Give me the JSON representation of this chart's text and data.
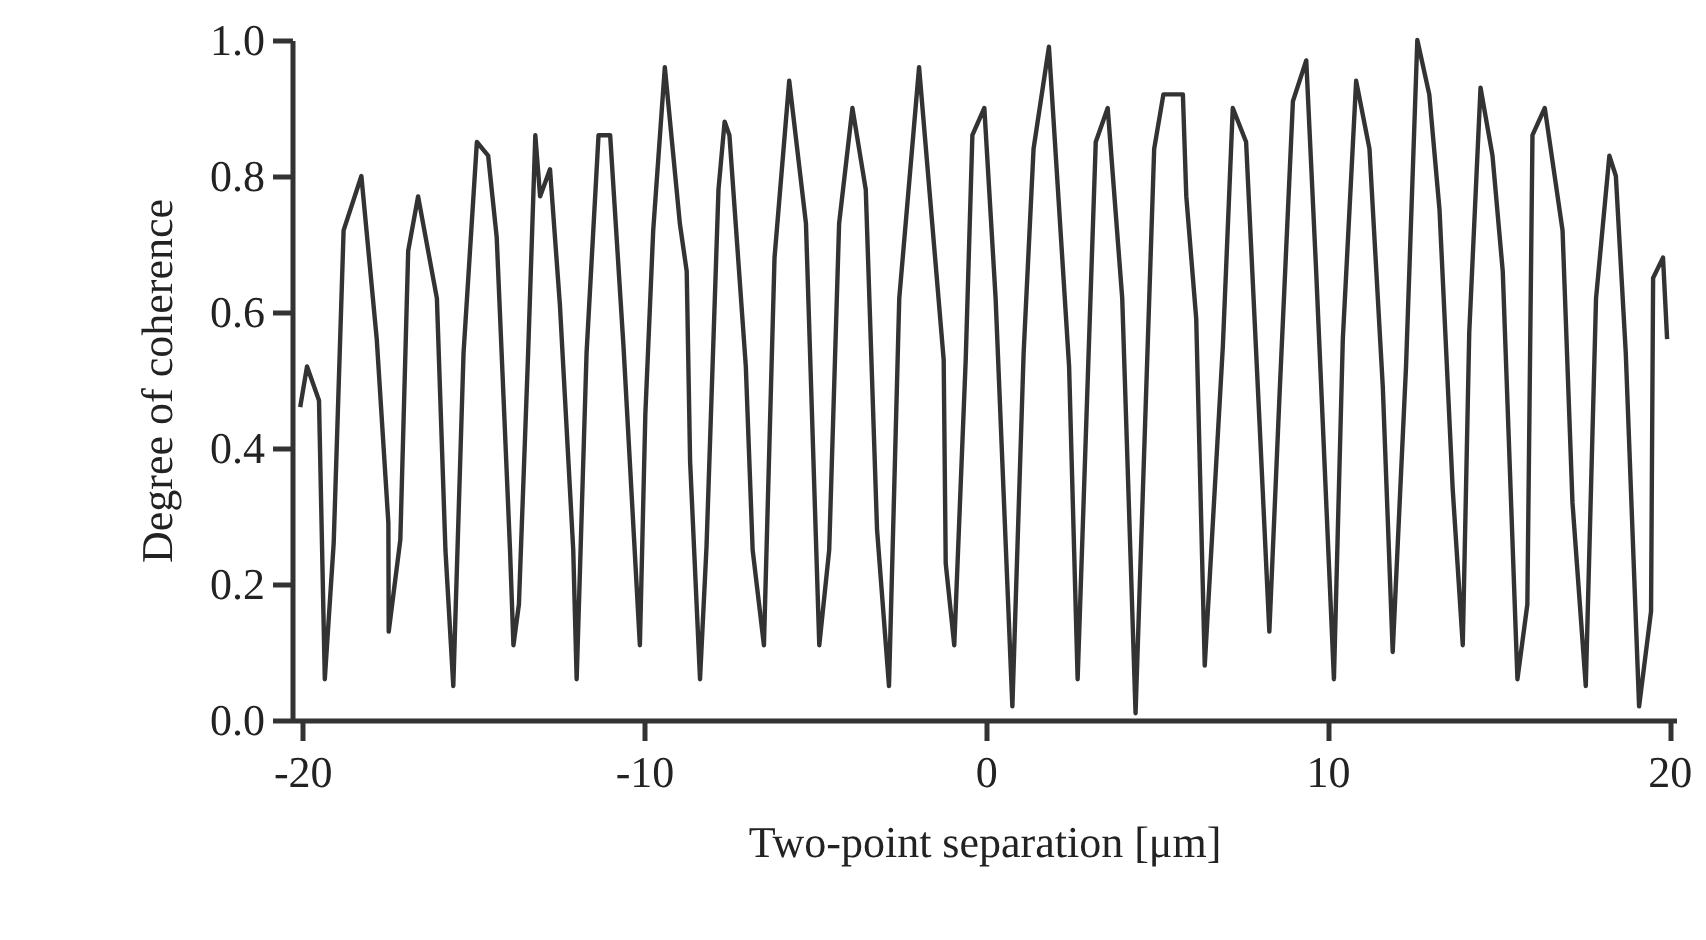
{
  "chart_data": {
    "type": "line",
    "xlabel": "Two-point separation [μm]",
    "ylabel": "Degree of coherence",
    "xlim": [
      -20.3,
      20.2
    ],
    "ylim": [
      0,
      1.0
    ],
    "xticks": [
      -20,
      -10,
      0,
      10,
      20
    ],
    "yticks": [
      {
        "value": 0,
        "label": "0.0"
      },
      {
        "value": 0.2,
        "label": "0.2"
      },
      {
        "value": 0.4,
        "label": "0.4"
      },
      {
        "value": 0.6,
        "label": "0.6"
      },
      {
        "value": 0.8,
        "label": "0.8"
      },
      {
        "value": 1.0,
        "label": "1.0"
      }
    ],
    "grid": false,
    "marker": "none",
    "line_style": "solid",
    "series": [
      {
        "color": "#333333",
        "x": [
          -20.06,
          -19.86,
          -19.51,
          -19.34,
          -19.08,
          -18.79,
          -18.27,
          -17.82,
          -17.48,
          -17.47,
          -17.13,
          -16.9,
          -16.61,
          -16.06,
          -15.81,
          -15.58,
          -15.28,
          -14.89,
          -14.56,
          -14.31,
          -13.92,
          -13.82,
          -13.66,
          -13.39,
          -13.18,
          -13.04,
          -12.75,
          -12.46,
          -12.07,
          -11.97,
          -11.68,
          -11.33,
          -10.99,
          -10.6,
          -10.12,
          -9.96,
          -9.73,
          -9.39,
          -8.95,
          -8.75,
          -8.65,
          -8.36,
          -8.17,
          -7.82,
          -7.64,
          -7.5,
          -7.02,
          -6.82,
          -6.49,
          -6.18,
          -5.75,
          -5.26,
          -4.87,
          -4.58,
          -4.29,
          -3.9,
          -3.51,
          -3.18,
          -2.83,
          -2.53,
          -1.95,
          -1.23,
          -1.17,
          -0.92,
          -0.585,
          -0.39,
          -0.04,
          0.29,
          0.78,
          1.11,
          1.4,
          1.85,
          2.44,
          2.69,
          3.22,
          3.57,
          3.995,
          4.385,
          4.93,
          5.2,
          5.77,
          5.87,
          6.16,
          6.41,
          6.94,
          7.23,
          7.62,
          8.01,
          8.3,
          8.6,
          8.99,
          9.38,
          9.67,
          10.19,
          10.45,
          10.84,
          11.23,
          11.62,
          11.91,
          12.3,
          12.63,
          12.98,
          13.28,
          13.665,
          13.96,
          14.15,
          14.48,
          14.83,
          15.13,
          15.56,
          15.85,
          16.0,
          16.36,
          16.88,
          17.17,
          17.56,
          17.86,
          18.25,
          18.44,
          18.73,
          19.12,
          19.47,
          19.53,
          19.82,
          19.94
        ],
        "values": [
          0.46,
          0.52,
          0.47,
          0.06,
          0.26,
          0.72,
          0.8,
          0.56,
          0.29,
          0.13,
          0.265,
          0.69,
          0.77,
          0.62,
          0.25,
          0.05,
          0.54,
          0.85,
          0.83,
          0.71,
          0.25,
          0.11,
          0.17,
          0.54,
          0.86,
          0.77,
          0.81,
          0.61,
          0.25,
          0.06,
          0.54,
          0.86,
          0.86,
          0.55,
          0.11,
          0.45,
          0.72,
          0.96,
          0.73,
          0.66,
          0.38,
          0.06,
          0.255,
          0.78,
          0.88,
          0.86,
          0.52,
          0.25,
          0.11,
          0.68,
          0.94,
          0.73,
          0.11,
          0.25,
          0.73,
          0.9,
          0.78,
          0.28,
          0.05,
          0.62,
          0.96,
          0.53,
          0.23,
          0.11,
          0.53,
          0.86,
          0.9,
          0.62,
          0.02,
          0.54,
          0.84,
          0.99,
          0.52,
          0.06,
          0.85,
          0.9,
          0.62,
          0.01,
          0.84,
          0.92,
          0.92,
          0.77,
          0.59,
          0.08,
          0.55,
          0.9,
          0.85,
          0.44,
          0.13,
          0.48,
          0.91,
          0.97,
          0.66,
          0.06,
          0.56,
          0.94,
          0.84,
          0.49,
          0.1,
          0.52,
          1.0,
          0.92,
          0.75,
          0.34,
          0.11,
          0.57,
          0.93,
          0.83,
          0.66,
          0.06,
          0.17,
          0.86,
          0.9,
          0.72,
          0.32,
          0.05,
          0.62,
          0.83,
          0.8,
          0.54,
          0.02,
          0.16,
          0.65,
          0.68,
          0.56
        ]
      }
    ]
  }
}
